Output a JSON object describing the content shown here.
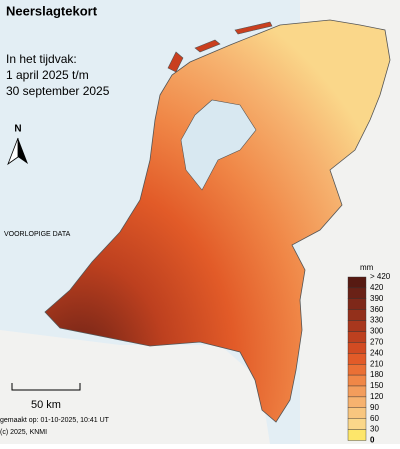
{
  "header": {
    "title": "Neerslagtekort",
    "period_label": "In het tijdvak:",
    "period_start": "1 april 2025 t/m",
    "period_end": "30 september 2025"
  },
  "north_label": "N",
  "status_label": "VOORLOPIGE DATA",
  "scale_bar": "50 km",
  "footer": {
    "made": "gemaakt op: 01-10-2025, 10:41 UT",
    "copyright": "(c) 2025, KNMI"
  },
  "legend": {
    "title": "mm",
    "top_label": "> 420",
    "ticks": [
      420,
      390,
      360,
      330,
      300,
      270,
      240,
      210,
      180,
      150,
      120,
      90,
      60,
      30,
      0
    ],
    "colors": [
      "#571a12",
      "#6a2116",
      "#7e2819",
      "#93301b",
      "#a8371d",
      "#bd401f",
      "#d24b22",
      "#e25b28",
      "#ea7035",
      "#f08747",
      "#f39d5c",
      "#f6b26f",
      "#f8c67f",
      "#fad78a",
      "#fde66a"
    ]
  }
}
